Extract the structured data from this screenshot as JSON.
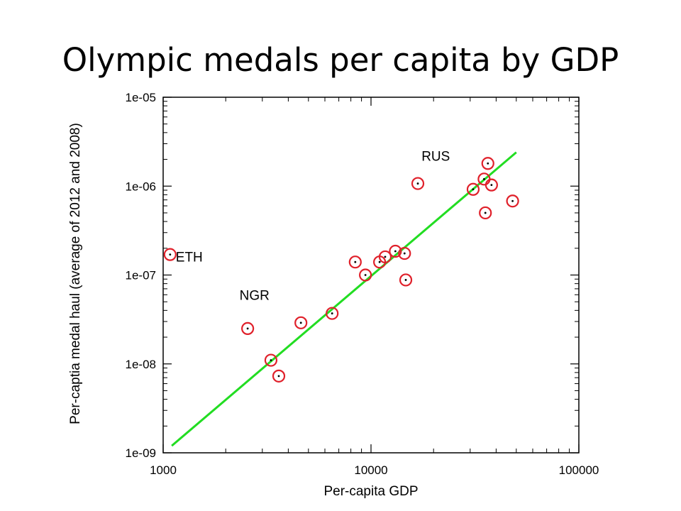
{
  "slide": {
    "title": "Olympic medals per capita by GDP"
  },
  "chart_data": {
    "type": "scatter",
    "title": "Olympic medals per capita by GDP",
    "xlabel": "Per-capita GDP",
    "ylabel": "Per-captia medal haul (average of 2012 and 2008)",
    "x_scale": "log",
    "y_scale": "log",
    "xlim": [
      1000,
      100000
    ],
    "ylim": [
      1e-09,
      1e-05
    ],
    "x_ticks": [
      {
        "value": 1000,
        "label": "1000"
      },
      {
        "value": 10000,
        "label": "10000"
      },
      {
        "value": 100000,
        "label": "100000"
      }
    ],
    "y_ticks": [
      {
        "value": 1e-09,
        "label": "1e-09"
      },
      {
        "value": 1e-08,
        "label": "1e-08"
      },
      {
        "value": 1e-07,
        "label": "1e-07"
      },
      {
        "value": 1e-06,
        "label": "1e-06"
      },
      {
        "value": 1e-05,
        "label": "1e-05"
      }
    ],
    "grid": false,
    "point_color": "#e0202a",
    "fit_color": "#22dd22",
    "points": [
      {
        "x": 1080,
        "y": 1.7e-07,
        "label": "ETH"
      },
      {
        "x": 2550,
        "y": 2.5e-08,
        "label": "NGR"
      },
      {
        "x": 3300,
        "y": 1.1e-08
      },
      {
        "x": 3600,
        "y": 7.3e-09
      },
      {
        "x": 4600,
        "y": 2.9e-08
      },
      {
        "x": 6500,
        "y": 3.7e-08
      },
      {
        "x": 8400,
        "y": 1.4e-07
      },
      {
        "x": 9400,
        "y": 1e-07
      },
      {
        "x": 11000,
        "y": 1.4e-07
      },
      {
        "x": 11700,
        "y": 1.6e-07
      },
      {
        "x": 13100,
        "y": 1.85e-07
      },
      {
        "x": 14500,
        "y": 1.75e-07
      },
      {
        "x": 14700,
        "y": 8.8e-08
      },
      {
        "x": 16800,
        "y": 1.07e-06,
        "label": "RUS"
      },
      {
        "x": 31000,
        "y": 9.2e-07
      },
      {
        "x": 35000,
        "y": 1.2e-06
      },
      {
        "x": 36500,
        "y": 1.8e-06
      },
      {
        "x": 38000,
        "y": 1.03e-06
      },
      {
        "x": 35500,
        "y": 5e-07
      },
      {
        "x": 48000,
        "y": 6.8e-07
      }
    ],
    "fit_line": {
      "x": [
        1100,
        50000
      ],
      "y": [
        1.2e-09,
        2.4e-06
      ]
    },
    "annotations": [
      {
        "text": "ETH",
        "x": 1150,
        "y": 1.62e-07,
        "anchor": "start"
      },
      {
        "text": "NGR",
        "x": 2750,
        "y": 6e-08,
        "anchor": "middle"
      },
      {
        "text": "RUS",
        "x": 17500,
        "y": 2.2e-06,
        "anchor": "start"
      }
    ]
  }
}
